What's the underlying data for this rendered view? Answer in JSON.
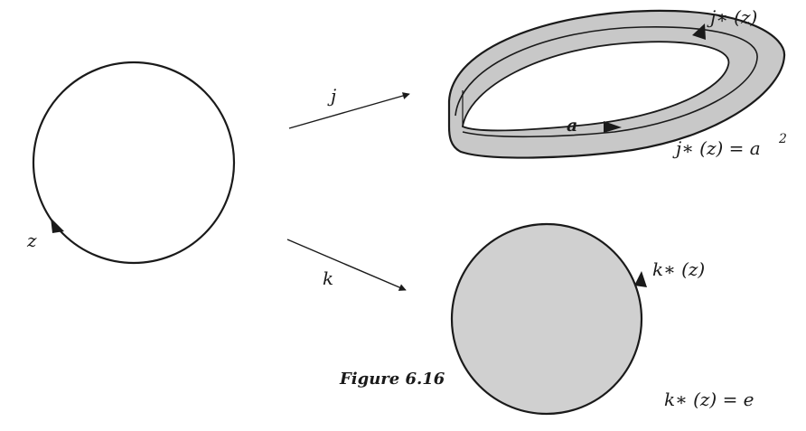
{
  "labels": {
    "z": "z",
    "j": "j",
    "k": "k",
    "a": "a",
    "j_star": "j∗ (z)",
    "j_star_eq": "j∗ (z) = a",
    "j_star_eq_exp": "2",
    "k_star": "k∗ (z)",
    "k_star_eq": "k∗ (z) = e"
  },
  "caption": "Figure 6.16",
  "colors": {
    "ink": "#1a1a1a",
    "fill_gray": "#c8c8c8",
    "disk_gray": "#d0d0d0"
  }
}
